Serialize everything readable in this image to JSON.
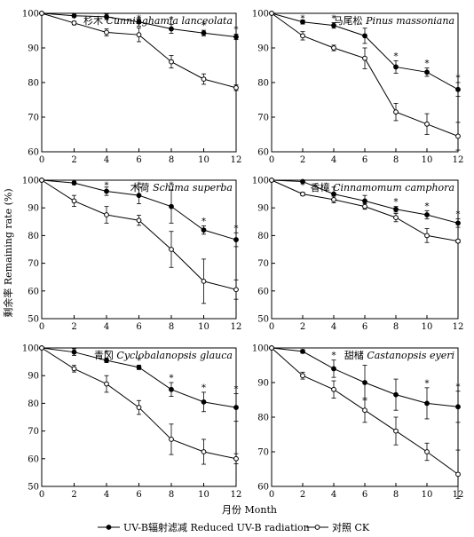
{
  "figure": {
    "ylabel": "剩余率 Remaining rate (%)",
    "xlabel": "月份  Month",
    "legend": {
      "treatment": "UV-B辐射滤减  Reduced UV-B radiation",
      "control": "对照  CK"
    },
    "significance_marker": "*"
  },
  "chart_data": [
    {
      "type": "line",
      "title": "杉木  Cunninghamia lanceolata",
      "x": [
        0,
        2,
        4,
        6,
        8,
        10,
        12
      ],
      "xlim": [
        0,
        12
      ],
      "ylim": [
        60,
        100
      ],
      "xticks": [
        "0",
        "2",
        "4",
        "6",
        "8",
        "10",
        "12"
      ],
      "yticks": [
        "60",
        "70",
        "80",
        "90",
        "100"
      ],
      "series": [
        {
          "name": "UV-B辐射滤减  Reduced UV-B radiation",
          "marker": "filled",
          "values": [
            100,
            99.3,
            99,
            97.5,
            95.5,
            94.3,
            93.2
          ],
          "errors": [
            0,
            0.3,
            0.8,
            1.2,
            1.3,
            0.8,
            0.8
          ]
        },
        {
          "name": "对照  CK",
          "marker": "open",
          "values": [
            100,
            97.2,
            94.5,
            93.8,
            86,
            81,
            78.5
          ],
          "errors": [
            0,
            0.5,
            1.0,
            2.0,
            1.8,
            1.5,
            0.8
          ]
        }
      ],
      "significant": [
        1,
        2,
        3,
        4,
        5,
        6
      ]
    },
    {
      "type": "line",
      "title": "马尾松  Pinus massoniana",
      "x": [
        0,
        2,
        4,
        6,
        8,
        10,
        12
      ],
      "xlim": [
        0,
        12
      ],
      "ylim": [
        60,
        100
      ],
      "xticks": [
        "0",
        "2",
        "4",
        "6",
        "8",
        "10",
        "12"
      ],
      "yticks": [
        "60",
        "70",
        "80",
        "90",
        "100"
      ],
      "series": [
        {
          "name": "UV-B辐射滤减  Reduced UV-B radiation",
          "marker": "filled",
          "values": [
            100,
            97.5,
            96.5,
            93.5,
            84.5,
            83,
            78
          ],
          "errors": [
            0,
            0.6,
            0.8,
            2.2,
            1.8,
            1.2,
            2.0
          ]
        },
        {
          "name": "对照  CK",
          "marker": "open",
          "values": [
            100,
            93.5,
            90,
            87,
            71.5,
            68,
            64.5
          ],
          "errors": [
            0,
            1.2,
            0.8,
            3.0,
            2.5,
            3.0,
            4.0
          ]
        }
      ],
      "significant": [
        1,
        2,
        4,
        5,
        6
      ]
    },
    {
      "type": "line",
      "title": "木荷  Schima superba",
      "x": [
        0,
        2,
        4,
        6,
        8,
        10,
        12
      ],
      "xlim": [
        0,
        12
      ],
      "ylim": [
        50,
        100
      ],
      "xticks": [
        "0",
        "2",
        "4",
        "6",
        "8",
        "10",
        "12"
      ],
      "yticks": [
        "50",
        "60",
        "70",
        "80",
        "90",
        "100"
      ],
      "series": [
        {
          "name": "UV-B辐射滤减  Reduced UV-B radiation",
          "marker": "filled",
          "values": [
            100,
            99,
            96,
            94.5,
            90.5,
            82,
            78.5
          ],
          "errors": [
            0,
            0.6,
            1.5,
            3.0,
            6.0,
            1.5,
            2.5
          ]
        },
        {
          "name": "对照  CK",
          "marker": "open",
          "values": [
            100,
            92.5,
            87.5,
            85.5,
            75,
            63.5,
            60.5
          ],
          "errors": [
            0,
            2.0,
            3.0,
            1.8,
            6.5,
            8.0,
            3.5
          ]
        }
      ],
      "significant": [
        1,
        2,
        3,
        4,
        5,
        6
      ]
    },
    {
      "type": "line",
      "title": "香樟  Cinnamomum camphora",
      "x": [
        0,
        2,
        4,
        6,
        8,
        10,
        12
      ],
      "xlim": [
        0,
        12
      ],
      "ylim": [
        50,
        100
      ],
      "xticks": [
        "0",
        "2",
        "4",
        "6",
        "8",
        "10",
        "12"
      ],
      "yticks": [
        "50",
        "60",
        "70",
        "80",
        "90",
        "100"
      ],
      "series": [
        {
          "name": "UV-B辐射滤减  Reduced UV-B radiation",
          "marker": "filled",
          "values": [
            100,
            99.5,
            95,
            92.5,
            89.5,
            87.5,
            84.5
          ],
          "errors": [
            0,
            0.5,
            2.5,
            2.0,
            1.0,
            1.5,
            1.5
          ]
        },
        {
          "name": "对照  CK",
          "marker": "open",
          "values": [
            100,
            95,
            93,
            90.5,
            86.5,
            80,
            78
          ],
          "errors": [
            0,
            0.6,
            1.2,
            1.0,
            1.5,
            2.5,
            0.6
          ]
        }
      ],
      "significant": [
        1,
        4,
        5,
        6
      ]
    },
    {
      "type": "line",
      "title": "青冈  Cyclobalanopsis glauca",
      "x": [
        0,
        2,
        4,
        6,
        8,
        10,
        12
      ],
      "xlim": [
        0,
        12
      ],
      "ylim": [
        50,
        100
      ],
      "xticks": [
        "0",
        "2",
        "4",
        "6",
        "8",
        "10",
        "12"
      ],
      "yticks": [
        "50",
        "60",
        "70",
        "80",
        "90",
        "100"
      ],
      "series": [
        {
          "name": "UV-B辐射滤减  Reduced UV-B radiation",
          "marker": "filled",
          "values": [
            100,
            98.5,
            95.5,
            93,
            85,
            80.5,
            78.5
          ],
          "errors": [
            0,
            1.2,
            0.8,
            0.8,
            2.5,
            3.5,
            5.0
          ]
        },
        {
          "name": "对照  CK",
          "marker": "open",
          "values": [
            100,
            92.5,
            87,
            78.5,
            67,
            62.5,
            60
          ],
          "errors": [
            0,
            1.2,
            3.0,
            2.5,
            5.5,
            4.5,
            1.8
          ]
        }
      ],
      "significant": [
        1,
        2,
        3,
        4,
        5,
        6
      ]
    },
    {
      "type": "line",
      "title": "甜槠  Castanopsis eyeri",
      "x": [
        0,
        2,
        4,
        6,
        8,
        10,
        12
      ],
      "xlim": [
        0,
        12
      ],
      "ylim": [
        60,
        100
      ],
      "xticks": [
        "0",
        "2",
        "4",
        "6",
        "8",
        "10",
        "12"
      ],
      "yticks": [
        "60",
        "70",
        "80",
        "90",
        "100"
      ],
      "series": [
        {
          "name": "UV-B辐射滤减  Reduced UV-B radiation",
          "marker": "filled",
          "values": [
            100,
            99,
            94,
            90,
            86.5,
            84,
            83
          ],
          "errors": [
            0,
            0.5,
            2.5,
            5.0,
            4.5,
            4.5,
            4.5
          ]
        },
        {
          "name": "对照  CK",
          "marker": "open",
          "values": [
            100,
            92,
            88,
            82,
            76,
            70,
            63.5
          ],
          "errors": [
            0,
            1.0,
            2.5,
            3.5,
            4.0,
            2.5,
            7.0
          ]
        }
      ],
      "significant": [
        1,
        2,
        5,
        6
      ]
    }
  ]
}
